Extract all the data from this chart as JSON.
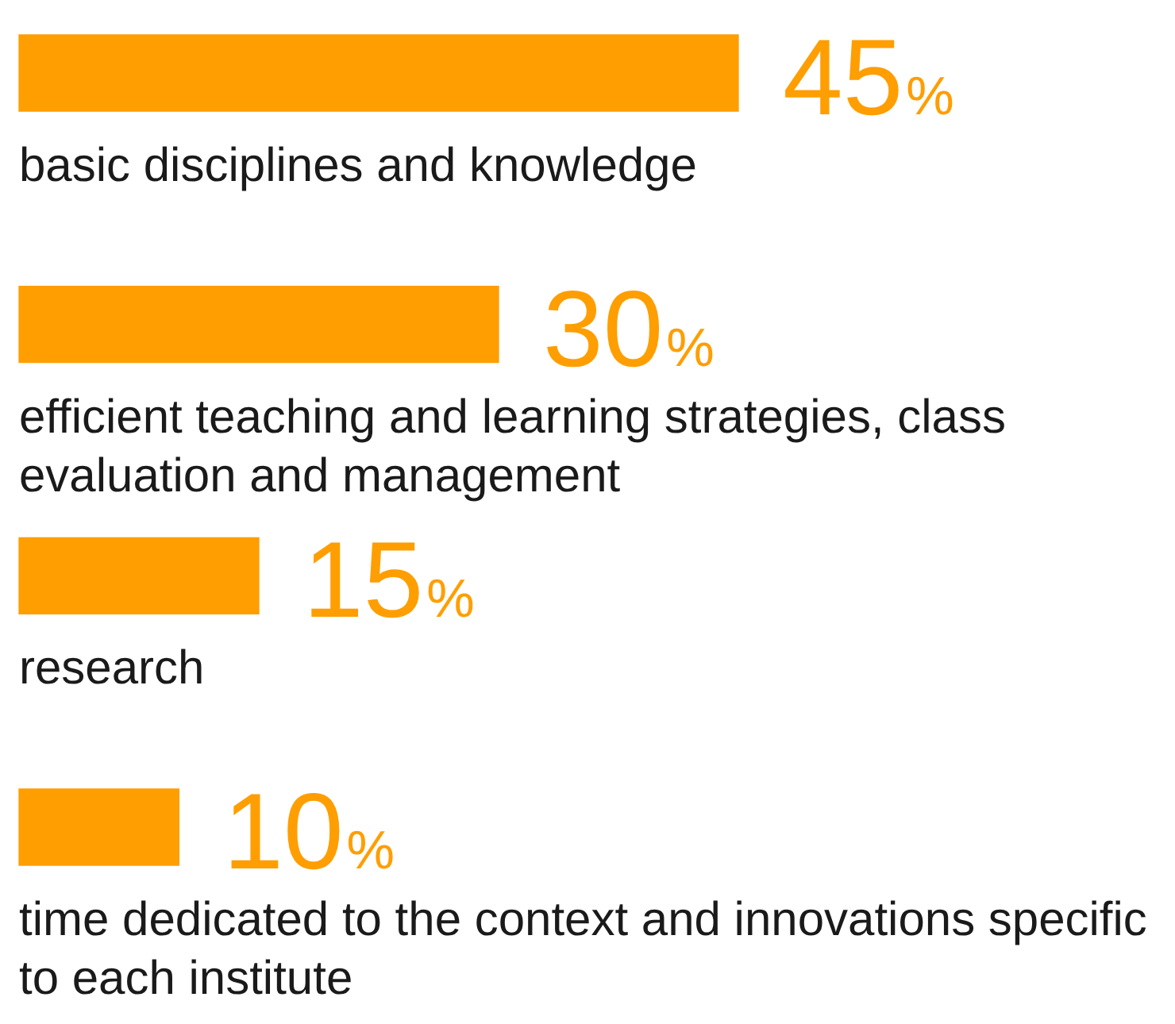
{
  "chart_data": {
    "type": "bar",
    "orientation": "horizontal",
    "categories": [
      "basic disciplines and knowledge",
      "efficient teaching and learning strategies, class evaluation and management",
      "research",
      "time dedicated to the context and innovations specific to each institute"
    ],
    "values": [
      45,
      30,
      15,
      10
    ],
    "color": "#ff9e00",
    "value_labels": [
      "45%",
      "30%",
      "15%",
      "10%"
    ]
  }
}
